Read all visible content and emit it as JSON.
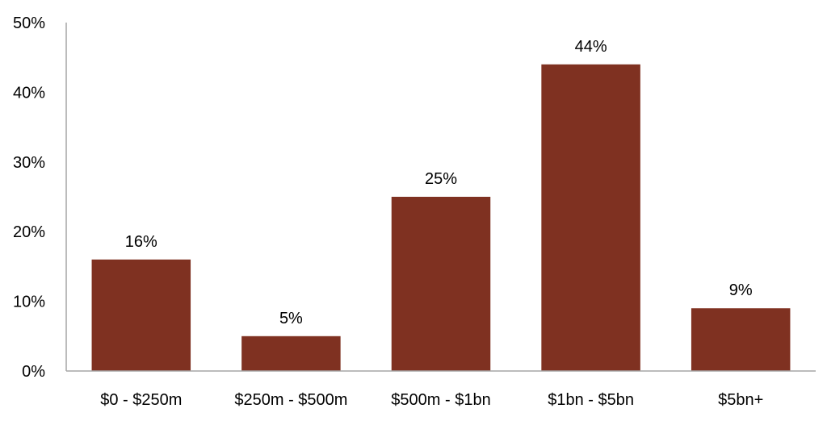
{
  "chart_data": {
    "type": "bar",
    "title": "",
    "xlabel": "",
    "ylabel": "",
    "categories": [
      "$0 - $250m",
      "$250m - $500m",
      "$500m - $1bn",
      "$1bn - $5bn",
      "$5bn+"
    ],
    "values": [
      16,
      5,
      25,
      44,
      9
    ],
    "data_labels": [
      "16%",
      "5%",
      "25%",
      "44%",
      "9%"
    ],
    "ylim": [
      0,
      50
    ],
    "yticks": [
      0,
      10,
      20,
      30,
      40,
      50
    ],
    "ytick_labels": [
      "0%",
      "10%",
      "20%",
      "30%",
      "40%",
      "50%"
    ],
    "grid": false,
    "legend": "none",
    "bar_color": "#7f3121",
    "axis_color": "#a6a6a6"
  }
}
